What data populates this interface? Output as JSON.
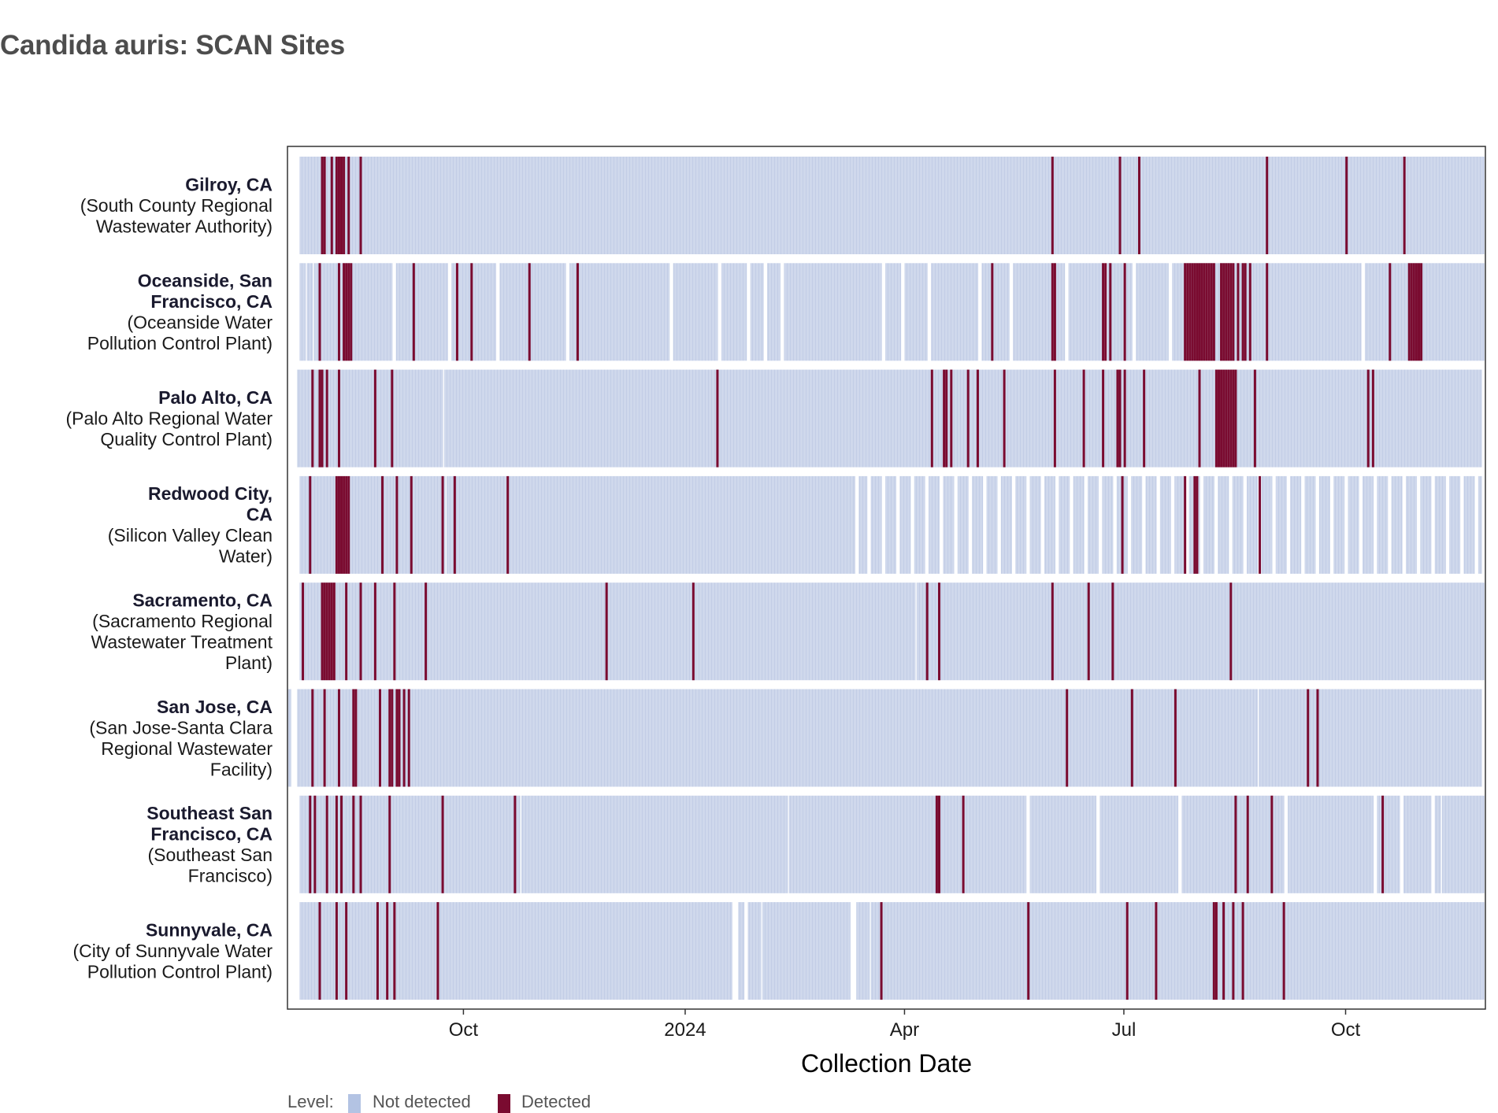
{
  "chart_data": {
    "type": "heatmap",
    "title": "Candida auris: SCAN Sites",
    "xlabel": "Collection Date",
    "ylabel": "",
    "xlim": [
      "2023-07-20",
      "2024-11-28"
    ],
    "x_ticks": [
      {
        "date": "2023-10-01",
        "label": "Oct"
      },
      {
        "date": "2024-01-01",
        "label": "2024"
      },
      {
        "date": "2024-04-01",
        "label": "Apr"
      },
      {
        "date": "2024-07-01",
        "label": "Jul"
      },
      {
        "date": "2024-10-01",
        "label": "Oct"
      }
    ],
    "legend": {
      "title": "Level:",
      "position": "bottom-left",
      "items": [
        {
          "label": "Not detected",
          "color": "#b3c3e3"
        },
        {
          "label": "Detected",
          "color": "#7a0b30"
        }
      ]
    },
    "colors": {
      "not_detected_fill": "#cfd8ec",
      "not_detected_line": "#c2cde6",
      "detected": "#7a0b30",
      "gap": "#ffffff"
    },
    "sites": [
      {
        "name": "Gilroy, CA",
        "facility": [
          "(South County Regional",
          "Wastewater Authority)"
        ],
        "coverage": [
          [
            "2023-07-25",
            "2024-11-27"
          ]
        ],
        "detected": [
          "2023-08-03",
          "2023-08-04",
          "2023-08-07",
          "2023-08-09",
          "2023-08-10",
          "2023-08-11",
          "2023-08-12",
          "2023-08-14",
          "2023-08-19",
          "2024-06-01",
          "2024-06-29",
          "2024-07-07",
          "2024-08-29",
          "2024-10-01",
          "2024-10-25"
        ]
      },
      {
        "name": "Oceanside, San Francisco, CA",
        "facility": [
          "(Oceanside Water",
          "Pollution Control Plant)"
        ],
        "coverage": [
          [
            "2023-07-25",
            "2023-07-27"
          ],
          [
            "2023-07-28",
            "2023-07-30"
          ],
          [
            "2023-07-31",
            "2023-09-01"
          ],
          [
            "2023-09-03",
            "2023-09-24"
          ],
          [
            "2023-09-26",
            "2023-10-14"
          ],
          [
            "2023-10-16",
            "2023-11-12"
          ],
          [
            "2023-11-14",
            "2023-12-25"
          ],
          [
            "2023-12-27",
            "2024-01-14"
          ],
          [
            "2024-01-16",
            "2024-01-26"
          ],
          [
            "2024-01-28",
            "2024-02-02"
          ],
          [
            "2024-02-04",
            "2024-02-09"
          ],
          [
            "2024-02-11",
            "2024-03-22"
          ],
          [
            "2024-03-24",
            "2024-03-30"
          ],
          [
            "2024-04-01",
            "2024-04-10"
          ],
          [
            "2024-04-12",
            "2024-05-01"
          ],
          [
            "2024-05-03",
            "2024-05-14"
          ],
          [
            "2024-05-16",
            "2024-06-06"
          ],
          [
            "2024-06-08",
            "2024-06-22"
          ],
          [
            "2024-06-24",
            "2024-07-04"
          ],
          [
            "2024-07-06",
            "2024-07-19"
          ],
          [
            "2024-07-21",
            "2024-10-07"
          ],
          [
            "2024-10-09",
            "2024-11-27"
          ]
        ],
        "detected": [
          "2023-08-02",
          "2023-08-10",
          "2023-08-12",
          "2023-08-13",
          "2023-08-14",
          "2023-08-15",
          "2023-09-10",
          "2023-09-28",
          "2023-10-04",
          "2023-10-28",
          "2023-11-17",
          "2024-05-07",
          "2024-06-01",
          "2024-06-02",
          "2024-06-22",
          "2024-06-23",
          "2024-06-25",
          "2024-07-01",
          "2024-07-26",
          "2024-07-27",
          "2024-07-28",
          "2024-07-29",
          "2024-07-30",
          "2024-07-31",
          "2024-08-01",
          "2024-08-02",
          "2024-08-03",
          "2024-08-04",
          "2024-08-05",
          "2024-08-06",
          "2024-08-07",
          "2024-08-10",
          "2024-08-11",
          "2024-08-12",
          "2024-08-13",
          "2024-08-14",
          "2024-08-15",
          "2024-08-17",
          "2024-08-19",
          "2024-08-20",
          "2024-08-22",
          "2024-08-29",
          "2024-10-19",
          "2024-10-27",
          "2024-10-28",
          "2024-10-29",
          "2024-10-30",
          "2024-10-31",
          "2024-11-01"
        ]
      },
      {
        "name": "Palo Alto, CA",
        "facility": [
          "(Palo Alto Regional Water",
          "Quality Control Plant)"
        ],
        "coverage": [
          [
            "2023-07-24",
            "2023-09-22"
          ],
          [
            "2023-09-23",
            "2024-11-26"
          ]
        ],
        "detected": [
          "2023-07-30",
          "2023-08-02",
          "2023-08-03",
          "2023-08-05",
          "2023-08-10",
          "2023-08-25",
          "2023-09-01",
          "2024-01-14",
          "2024-04-12",
          "2024-04-17",
          "2024-04-18",
          "2024-04-20",
          "2024-04-27",
          "2024-05-01",
          "2024-05-12",
          "2024-06-02",
          "2024-06-14",
          "2024-06-22",
          "2024-06-28",
          "2024-06-29",
          "2024-07-01",
          "2024-07-09",
          "2024-08-01",
          "2024-08-08",
          "2024-08-09",
          "2024-08-10",
          "2024-08-11",
          "2024-08-12",
          "2024-08-13",
          "2024-08-14",
          "2024-08-15",
          "2024-08-16",
          "2024-08-24",
          "2024-10-10",
          "2024-10-12"
        ]
      },
      {
        "name": "Redwood City, CA",
        "facility": [
          "(Silicon Valley Clean",
          "Water)"
        ],
        "coverage": [
          [
            "2023-07-25",
            "2023-09-23"
          ],
          [
            "2023-09-24",
            "2024-03-11"
          ],
          [
            "2024-03-13",
            "2024-03-16"
          ],
          [
            "2024-03-18",
            "2024-03-22"
          ],
          [
            "2024-03-24",
            "2024-03-28"
          ],
          [
            "2024-03-30",
            "2024-04-03"
          ],
          [
            "2024-04-05",
            "2024-04-09"
          ],
          [
            "2024-04-11",
            "2024-04-15"
          ],
          [
            "2024-04-17",
            "2024-04-21"
          ],
          [
            "2024-04-23",
            "2024-04-27"
          ],
          [
            "2024-04-29",
            "2024-05-03"
          ],
          [
            "2024-05-05",
            "2024-05-09"
          ],
          [
            "2024-05-11",
            "2024-05-15"
          ],
          [
            "2024-05-17",
            "2024-05-21"
          ],
          [
            "2024-05-23",
            "2024-05-27"
          ],
          [
            "2024-05-29",
            "2024-06-02"
          ],
          [
            "2024-06-04",
            "2024-06-08"
          ],
          [
            "2024-06-10",
            "2024-06-14"
          ],
          [
            "2024-06-16",
            "2024-06-20"
          ],
          [
            "2024-06-22",
            "2024-06-26"
          ],
          [
            "2024-06-28",
            "2024-07-02"
          ],
          [
            "2024-07-04",
            "2024-07-08"
          ],
          [
            "2024-07-10",
            "2024-07-14"
          ],
          [
            "2024-07-16",
            "2024-07-20"
          ],
          [
            "2024-07-22",
            "2024-07-26"
          ],
          [
            "2024-07-28",
            "2024-08-01"
          ],
          [
            "2024-08-03",
            "2024-08-07"
          ],
          [
            "2024-08-09",
            "2024-08-13"
          ],
          [
            "2024-08-15",
            "2024-08-19"
          ],
          [
            "2024-08-21",
            "2024-08-25"
          ],
          [
            "2024-08-27",
            "2024-08-31"
          ],
          [
            "2024-09-02",
            "2024-09-06"
          ],
          [
            "2024-09-08",
            "2024-09-12"
          ],
          [
            "2024-09-14",
            "2024-09-18"
          ],
          [
            "2024-09-20",
            "2024-09-24"
          ],
          [
            "2024-09-26",
            "2024-09-30"
          ],
          [
            "2024-10-02",
            "2024-10-06"
          ],
          [
            "2024-10-08",
            "2024-10-12"
          ],
          [
            "2024-10-14",
            "2024-10-18"
          ],
          [
            "2024-10-20",
            "2024-10-24"
          ],
          [
            "2024-10-26",
            "2024-10-30"
          ],
          [
            "2024-11-01",
            "2024-11-05"
          ],
          [
            "2024-11-07",
            "2024-11-11"
          ],
          [
            "2024-11-13",
            "2024-11-17"
          ],
          [
            "2024-11-19",
            "2024-11-23"
          ],
          [
            "2024-11-25",
            "2024-11-26"
          ]
        ],
        "detected": [
          "2023-07-29",
          "2023-08-09",
          "2023-08-10",
          "2023-08-11",
          "2023-08-12",
          "2023-08-13",
          "2023-08-14",
          "2023-08-28",
          "2023-09-03",
          "2023-09-09",
          "2023-09-22",
          "2023-09-27",
          "2023-10-19",
          "2024-06-30",
          "2024-07-26",
          "2024-07-30",
          "2024-07-31",
          "2024-08-26"
        ]
      },
      {
        "name": "Sacramento, CA",
        "facility": [
          "(Sacramento Regional",
          "Wastewater Treatment",
          "Plant)"
        ],
        "coverage": [
          [
            "2023-07-25",
            "2024-04-05"
          ],
          [
            "2024-04-06",
            "2024-11-27"
          ]
        ],
        "detected": [
          "2023-07-26",
          "2023-08-03",
          "2023-08-04",
          "2023-08-05",
          "2023-08-06",
          "2023-08-07",
          "2023-08-08",
          "2023-08-13",
          "2023-08-19",
          "2023-08-25",
          "2023-09-02",
          "2023-09-15",
          "2023-11-29",
          "2024-01-04",
          "2024-04-10",
          "2024-04-15",
          "2024-06-01",
          "2024-06-16",
          "2024-06-26",
          "2024-08-14"
        ]
      },
      {
        "name": "San Jose, CA",
        "facility": [
          "(San Jose-Santa Clara",
          "Regional Wastewater",
          "Facility)"
        ],
        "coverage": [
          [
            "2023-07-20",
            "2023-07-21"
          ],
          [
            "2023-07-24",
            "2024-08-25"
          ],
          [
            "2024-08-26",
            "2024-11-26"
          ]
        ],
        "detected": [
          "2023-07-30",
          "2023-08-04",
          "2023-08-10",
          "2023-08-16",
          "2023-08-17",
          "2023-08-27",
          "2023-08-31",
          "2023-09-01",
          "2023-09-03",
          "2023-09-04",
          "2023-09-06",
          "2023-09-08",
          "2024-06-07",
          "2024-07-04",
          "2024-07-22",
          "2024-09-15",
          "2024-09-19"
        ]
      },
      {
        "name": "Southeast San Francisco, CA",
        "facility": [
          "(Southeast San",
          "Francisco)"
        ],
        "coverage": [
          [
            "2023-07-25",
            "2023-10-24"
          ],
          [
            "2023-10-25",
            "2024-02-12"
          ],
          [
            "2024-02-13",
            "2024-05-21"
          ],
          [
            "2024-05-23",
            "2024-06-19"
          ],
          [
            "2024-06-21",
            "2024-07-23"
          ],
          [
            "2024-07-25",
            "2024-09-05"
          ],
          [
            "2024-09-07",
            "2024-10-12"
          ],
          [
            "2024-10-14",
            "2024-10-23"
          ],
          [
            "2024-10-25",
            "2024-11-05"
          ],
          [
            "2024-11-07",
            "2024-11-09"
          ],
          [
            "2024-11-10",
            "2024-11-27"
          ]
        ],
        "detected": [
          "2023-07-29",
          "2023-07-31",
          "2023-08-05",
          "2023-08-09",
          "2023-08-11",
          "2023-08-16",
          "2023-08-19",
          "2023-08-31",
          "2023-09-22",
          "2023-10-22",
          "2024-04-14",
          "2024-04-15",
          "2024-04-25",
          "2024-08-16",
          "2024-08-21",
          "2024-08-31",
          "2024-10-16"
        ]
      },
      {
        "name": "Sunnyvale, CA",
        "facility": [
          "(City of Sunnyvale Water",
          "Pollution Control Plant)"
        ],
        "coverage": [
          [
            "2023-07-25",
            "2024-01-20"
          ],
          [
            "2024-01-23",
            "2024-01-25"
          ],
          [
            "2024-01-27",
            "2024-02-01"
          ],
          [
            "2024-02-02",
            "2024-03-09"
          ],
          [
            "2024-03-12",
            "2024-03-17"
          ],
          [
            "2024-03-18",
            "2024-11-27"
          ]
        ],
        "detected": [
          "2023-08-02",
          "2023-08-09",
          "2023-08-13",
          "2023-08-26",
          "2023-08-30",
          "2023-09-02",
          "2023-09-20",
          "2024-03-22",
          "2024-05-22",
          "2024-07-02",
          "2024-07-14",
          "2024-08-07",
          "2024-08-08",
          "2024-08-11",
          "2024-08-15",
          "2024-08-19",
          "2024-09-05"
        ]
      }
    ]
  }
}
